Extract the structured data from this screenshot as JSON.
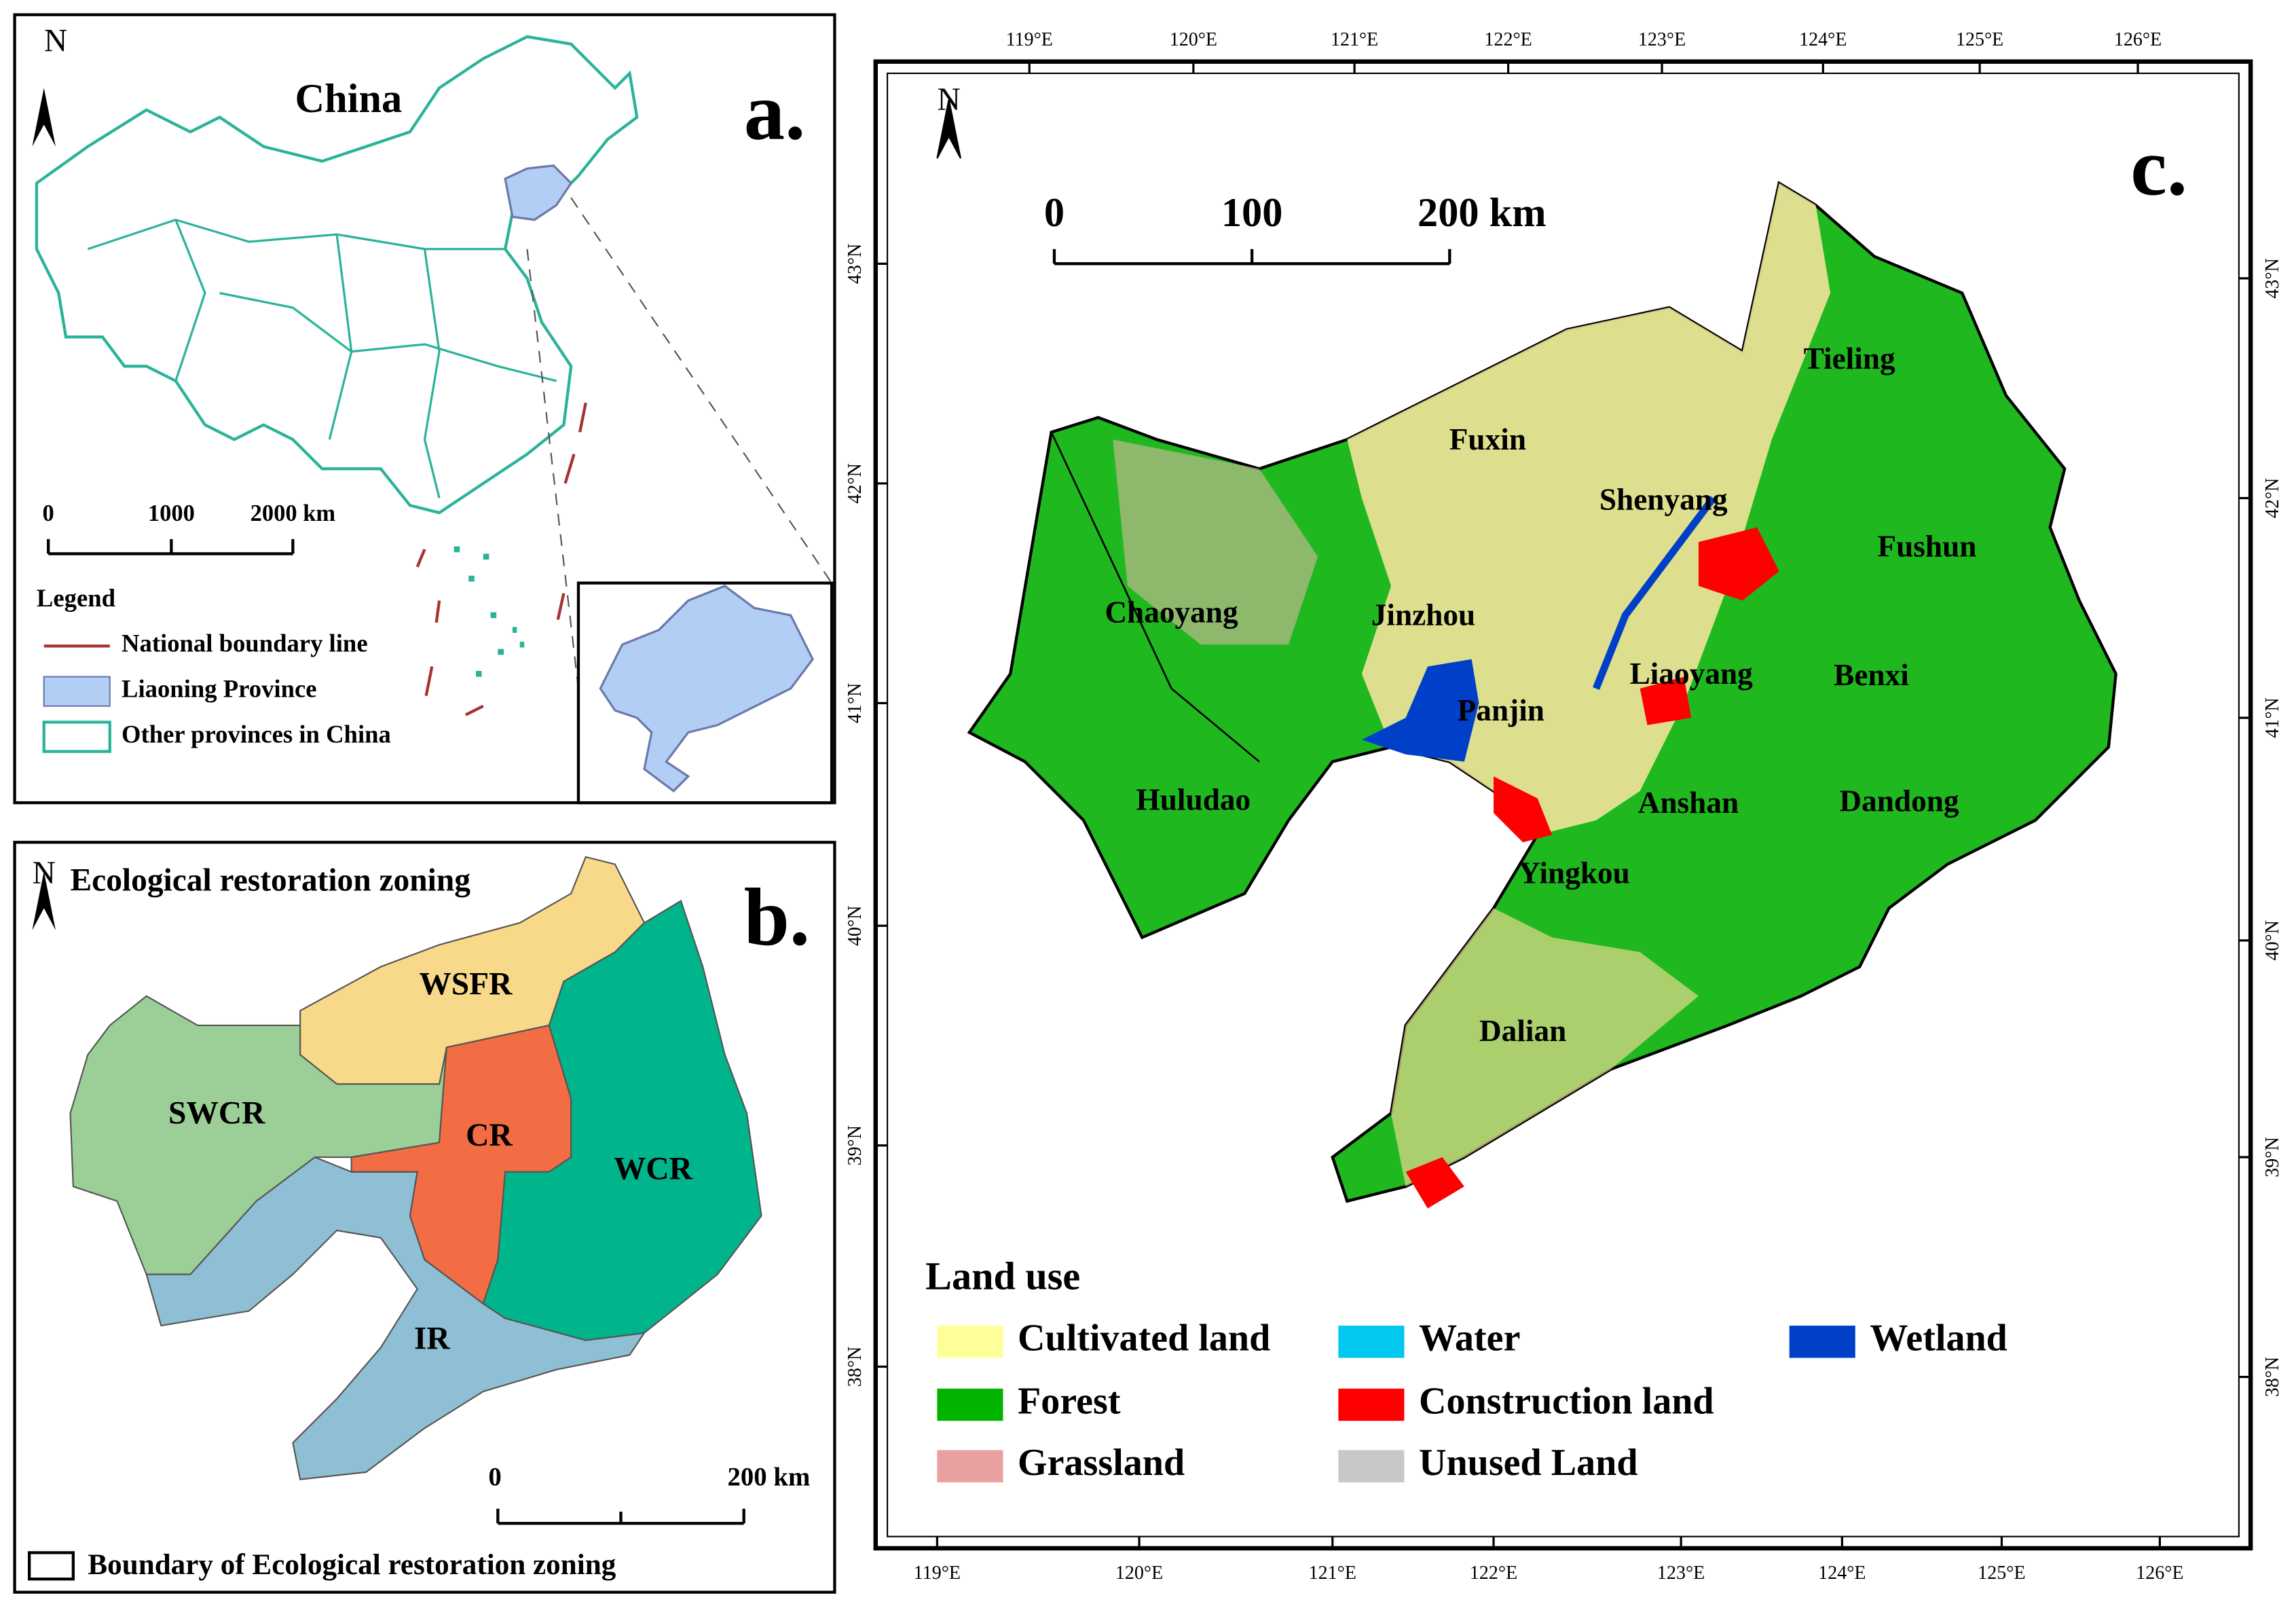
{
  "panel_a": {
    "label": "a.",
    "title": "China",
    "north": "N",
    "scale_labels": [
      "0",
      "1000",
      "2000 km"
    ],
    "legend": {
      "title": "Legend",
      "items": [
        "National boundary line",
        "Liaoning Province",
        "Other provinces in China"
      ]
    }
  },
  "panel_b": {
    "label": "b.",
    "title": "Ecological restoration zoning",
    "north": "N",
    "zones": [
      {
        "name": "WSFR",
        "color": "#f8d98a"
      },
      {
        "name": "SWCR",
        "color": "#9ccf97"
      },
      {
        "name": "CR",
        "color": "#f26c44"
      },
      {
        "name": "WCR",
        "color": "#00b48c"
      },
      {
        "name": "IR",
        "color": "#8fbfd4"
      }
    ],
    "scale_labels": [
      "0",
      "200 km"
    ],
    "legend": "Boundary of Ecological restoration zoning"
  },
  "panel_c": {
    "label": "c.",
    "north": "N",
    "scale_labels": [
      "0",
      "100",
      "200 km"
    ],
    "lon_labels": [
      "119°E",
      "120°E",
      "121°E",
      "122°E",
      "123°E",
      "124°E",
      "125°E",
      "126°E"
    ],
    "lat_labels": [
      "43°N",
      "42°N",
      "41°N",
      "40°N",
      "39°N",
      "38°N"
    ],
    "cities": [
      "Tieling",
      "Fuxin",
      "Shenyang",
      "Fushun",
      "Chaoyang",
      "Jinzhou",
      "Liaoyang",
      "Benxi",
      "Panjin",
      "Huludao",
      "Anshan",
      "Dandong",
      "Yingkou",
      "Dalian"
    ],
    "legend": {
      "title": "Land use",
      "items": [
        {
          "name": "Cultivated land",
          "color": "#ffff99"
        },
        {
          "name": "Forest",
          "color": "#00b400"
        },
        {
          "name": "Grassland",
          "color": "#e8a0a0"
        },
        {
          "name": "Water",
          "color": "#00c8f0"
        },
        {
          "name": "Construction land",
          "color": "#ff0000"
        },
        {
          "name": "Unused Land",
          "color": "#c8c8c8"
        },
        {
          "name": "Wetland",
          "color": "#0040c8"
        }
      ]
    }
  }
}
